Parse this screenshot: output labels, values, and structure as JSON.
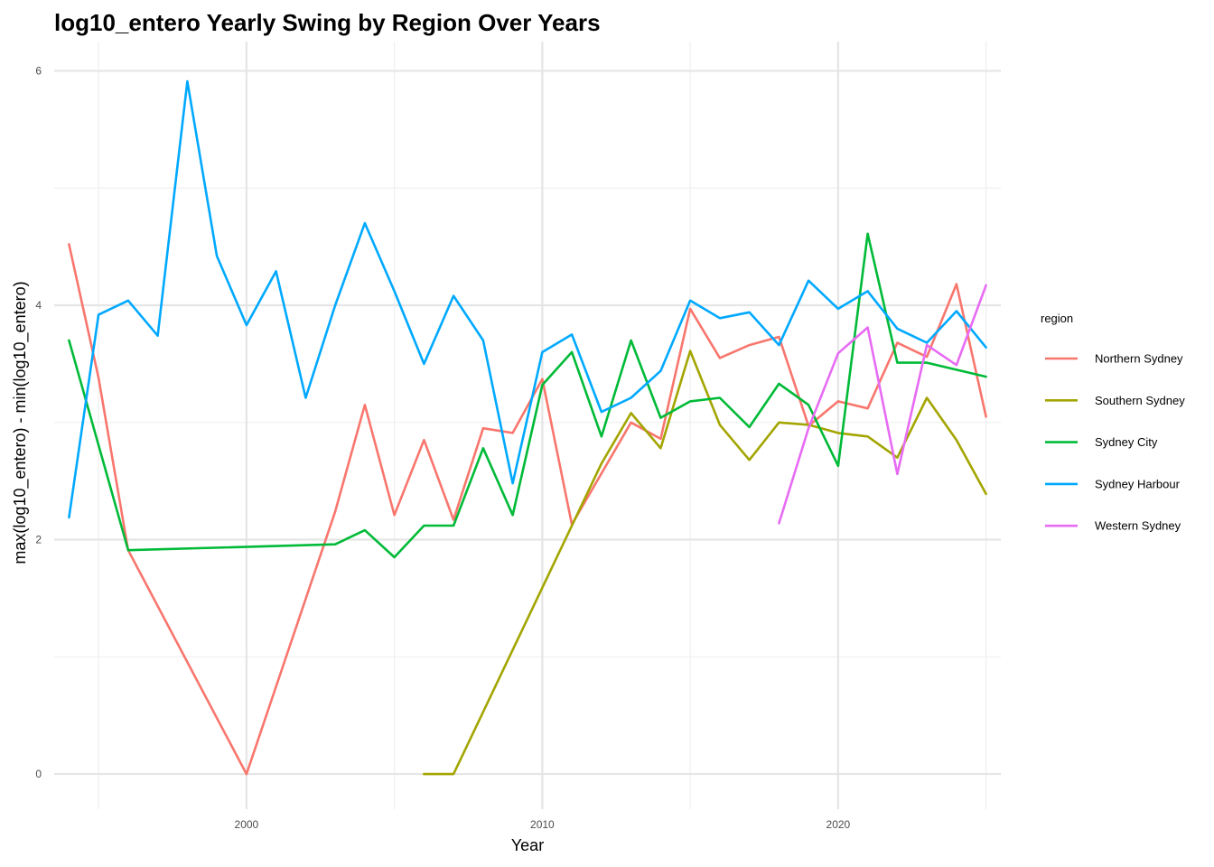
{
  "chart_data": {
    "type": "line",
    "title": "log10_entero Yearly Swing by Region Over Years",
    "xlabel": "Year",
    "ylabel": "max(log10_entero) - min(log10_entero)",
    "xlim": [
      1993.5,
      2025.5
    ],
    "ylim": [
      -0.3,
      6.25
    ],
    "x_ticks": [
      2000,
      2010,
      2020
    ],
    "x_tick_labels": [
      "2000",
      "2010",
      "2020"
    ],
    "x_minor_ticks": [
      1995,
      2005,
      2015,
      2025
    ],
    "y_ticks": [
      0,
      2,
      4,
      6
    ],
    "y_tick_labels": [
      "0",
      "2",
      "4",
      "6"
    ],
    "y_minor_ticks": [
      1,
      3,
      5
    ],
    "grid": true,
    "legend": {
      "title": "region",
      "position": "right"
    },
    "series": [
      {
        "name": "Northern Sydney",
        "color": "#F8766D",
        "x": [
          1994,
          1995,
          1996,
          2000,
          2003,
          2004,
          2005,
          2006,
          2007,
          2008,
          2009,
          2010,
          2011,
          2013,
          2014,
          2015,
          2016,
          2017,
          2018,
          2019,
          2020,
          2021,
          2022,
          2023,
          2024,
          2025
        ],
        "y": [
          4.52,
          3.38,
          1.91,
          0.0,
          2.24,
          3.15,
          2.21,
          2.85,
          2.17,
          2.95,
          2.91,
          3.37,
          2.13,
          3.0,
          2.86,
          3.97,
          3.55,
          3.66,
          3.73,
          2.97,
          3.18,
          3.12,
          3.68,
          3.56,
          4.18,
          3.05
        ]
      },
      {
        "name": "Southern Sydney",
        "color": "#A3A500",
        "x": [
          2006,
          2007,
          2012,
          2013,
          2014,
          2015,
          2016,
          2017,
          2018,
          2019,
          2020,
          2021,
          2022,
          2023,
          2024,
          2025
        ],
        "y": [
          0.0,
          0.0,
          2.65,
          3.08,
          2.78,
          3.61,
          2.98,
          2.68,
          3.0,
          2.98,
          2.91,
          2.88,
          2.7,
          3.21,
          2.85,
          2.39
        ]
      },
      {
        "name": "Sydney City",
        "color": "#00BA38",
        "x": [
          1994,
          1996,
          2003,
          2004,
          2005,
          2006,
          2007,
          2008,
          2009,
          2010,
          2011,
          2012,
          2013,
          2014,
          2015,
          2016,
          2017,
          2018,
          2019,
          2020,
          2021,
          2022,
          2023,
          2025
        ],
        "y": [
          3.7,
          1.91,
          1.96,
          2.08,
          1.85,
          2.12,
          2.12,
          2.78,
          2.21,
          3.32,
          3.6,
          2.88,
          3.7,
          3.04,
          3.18,
          3.21,
          2.96,
          3.33,
          3.15,
          2.63,
          4.61,
          3.51,
          3.51,
          3.39
        ]
      },
      {
        "name": "Sydney Harbour",
        "color": "#00A9FF",
        "x": [
          1994,
          1995,
          1996,
          1997,
          1998,
          1999,
          2000,
          2001,
          2002,
          2003,
          2004,
          2005,
          2006,
          2007,
          2008,
          2009,
          2010,
          2011,
          2012,
          2013,
          2014,
          2015,
          2016,
          2017,
          2018,
          2019,
          2020,
          2021,
          2022,
          2023,
          2024,
          2025
        ],
        "y": [
          2.19,
          3.92,
          4.04,
          3.74,
          5.91,
          4.42,
          3.83,
          4.29,
          3.21,
          4.0,
          4.7,
          4.12,
          3.5,
          4.08,
          3.7,
          2.48,
          3.6,
          3.75,
          3.09,
          3.21,
          3.44,
          4.04,
          3.89,
          3.94,
          3.66,
          4.21,
          3.97,
          4.12,
          3.8,
          3.68,
          3.95,
          3.64
        ]
      },
      {
        "name": "Western Sydney",
        "color": "#E76BF3",
        "x": [
          2018,
          2019,
          2020,
          2021,
          2022,
          2023,
          2024,
          2025
        ],
        "y": [
          2.14,
          2.95,
          3.59,
          3.81,
          2.56,
          3.66,
          3.49,
          4.17
        ]
      }
    ]
  }
}
